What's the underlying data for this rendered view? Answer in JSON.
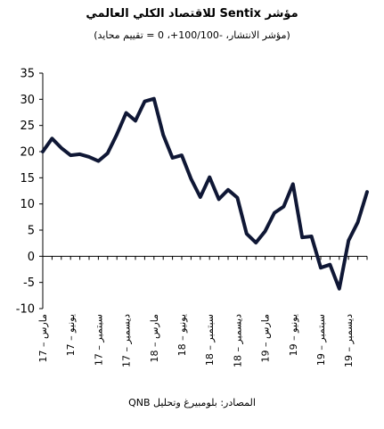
{
  "chart_data": {
    "type": "line",
    "title": "مؤشر Sentix للاقتصاد الكلي العالمي",
    "subtitle": "(مؤشر الانتشار، -100/100+، 0 = تقييم محايد)",
    "source": "المصادر: بلومبيرغ وتحليل QNB",
    "ylim": [
      -10,
      35
    ],
    "yticks": [
      35,
      30,
      25,
      20,
      15,
      10,
      5,
      0,
      -5,
      -10
    ],
    "xtick_labels": [
      "مارس – 17",
      "يونيو – 17",
      "سبتمبر – 17",
      "ديسمبر – 17",
      "مارس – 18",
      "يونيو – 18",
      "سبتمبر – 18",
      "ديسمبر – 18",
      "مارس – 19",
      "يونيو – 19",
      "سبتمبر – 19",
      "ديسمبر – 19"
    ],
    "series": [
      {
        "values": [
          20.0,
          22.5,
          20.7,
          19.3,
          19.5,
          19.0,
          18.2,
          19.7,
          23.3,
          27.4,
          25.9,
          29.6,
          30.1,
          23.2,
          18.8,
          19.3,
          14.8,
          11.3,
          15.1,
          10.9,
          12.7,
          11.2,
          4.3,
          2.6,
          4.8,
          8.3,
          9.5,
          13.8,
          3.6,
          3.8,
          -2.2,
          -1.6,
          -6.2,
          3.0,
          6.5,
          12.3
        ]
      }
    ],
    "grid": false,
    "colors": {
      "line": "#0f1735",
      "axis": "#000000"
    }
  }
}
